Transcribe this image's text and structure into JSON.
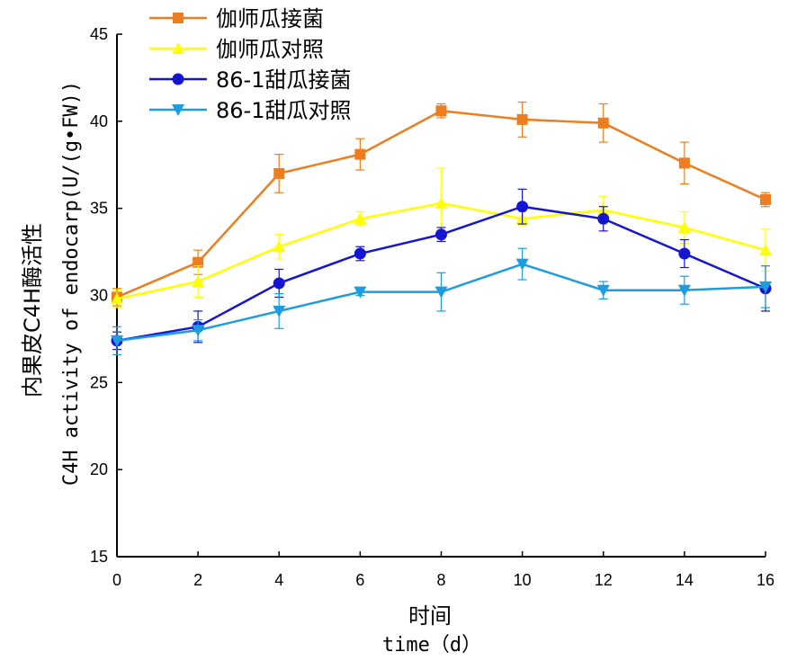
{
  "chart_data": {
    "type": "line",
    "ylabel_cn": "内果皮C4H酶活性",
    "ylabel_en": "C4H activity of endocarp(U/(g•FW))",
    "xlabel_cn": "时间",
    "xlabel_en": "time（d）",
    "x": [
      0,
      2,
      4,
      6,
      8,
      10,
      12,
      14,
      16
    ],
    "xlim": [
      0,
      16
    ],
    "ylim": [
      15,
      45
    ],
    "xticks": [
      "0",
      "2",
      "4",
      "6",
      "8",
      "10",
      "12",
      "14",
      "16"
    ],
    "yticks": [
      "15",
      "20",
      "25",
      "30",
      "35",
      "40",
      "45"
    ],
    "legend_position": "top-left",
    "grid": false,
    "series": [
      {
        "name": "伽师瓜接菌",
        "color": "#ED7D1E",
        "marker": "square",
        "values": [
          29.9,
          31.9,
          37.0,
          38.1,
          40.6,
          40.1,
          39.9,
          37.6,
          35.5
        ],
        "errors": [
          0.5,
          0.7,
          1.1,
          0.9,
          0.4,
          1.0,
          1.1,
          1.2,
          0.4
        ]
      },
      {
        "name": "伽师瓜对照",
        "color": "#FFFF00",
        "marker": "triangle-up",
        "values": [
          29.8,
          30.8,
          32.8,
          34.4,
          35.3,
          34.4,
          34.9,
          33.9,
          32.6
        ],
        "errors": [
          0.5,
          0.9,
          0.7,
          0.4,
          2.0,
          0.4,
          0.8,
          0.9,
          1.2
        ]
      },
      {
        "name": "86-1甜瓜接菌",
        "color": "#1515D1",
        "marker": "circle",
        "values": [
          27.4,
          28.2,
          30.7,
          32.4,
          33.5,
          35.1,
          34.4,
          32.4,
          30.4
        ],
        "errors": [
          0.5,
          0.9,
          0.8,
          0.4,
          0.4,
          1.0,
          0.7,
          0.8,
          1.3
        ]
      },
      {
        "name": "86-1甜瓜对照",
        "color": "#1E9CE0",
        "marker": "triangle-down",
        "values": [
          27.4,
          28.0,
          29.1,
          30.2,
          30.2,
          31.8,
          30.3,
          30.3,
          30.5
        ],
        "errors": [
          0.8,
          0.6,
          1.0,
          0.2,
          1.1,
          0.9,
          0.5,
          0.8,
          1.2
        ]
      }
    ]
  }
}
